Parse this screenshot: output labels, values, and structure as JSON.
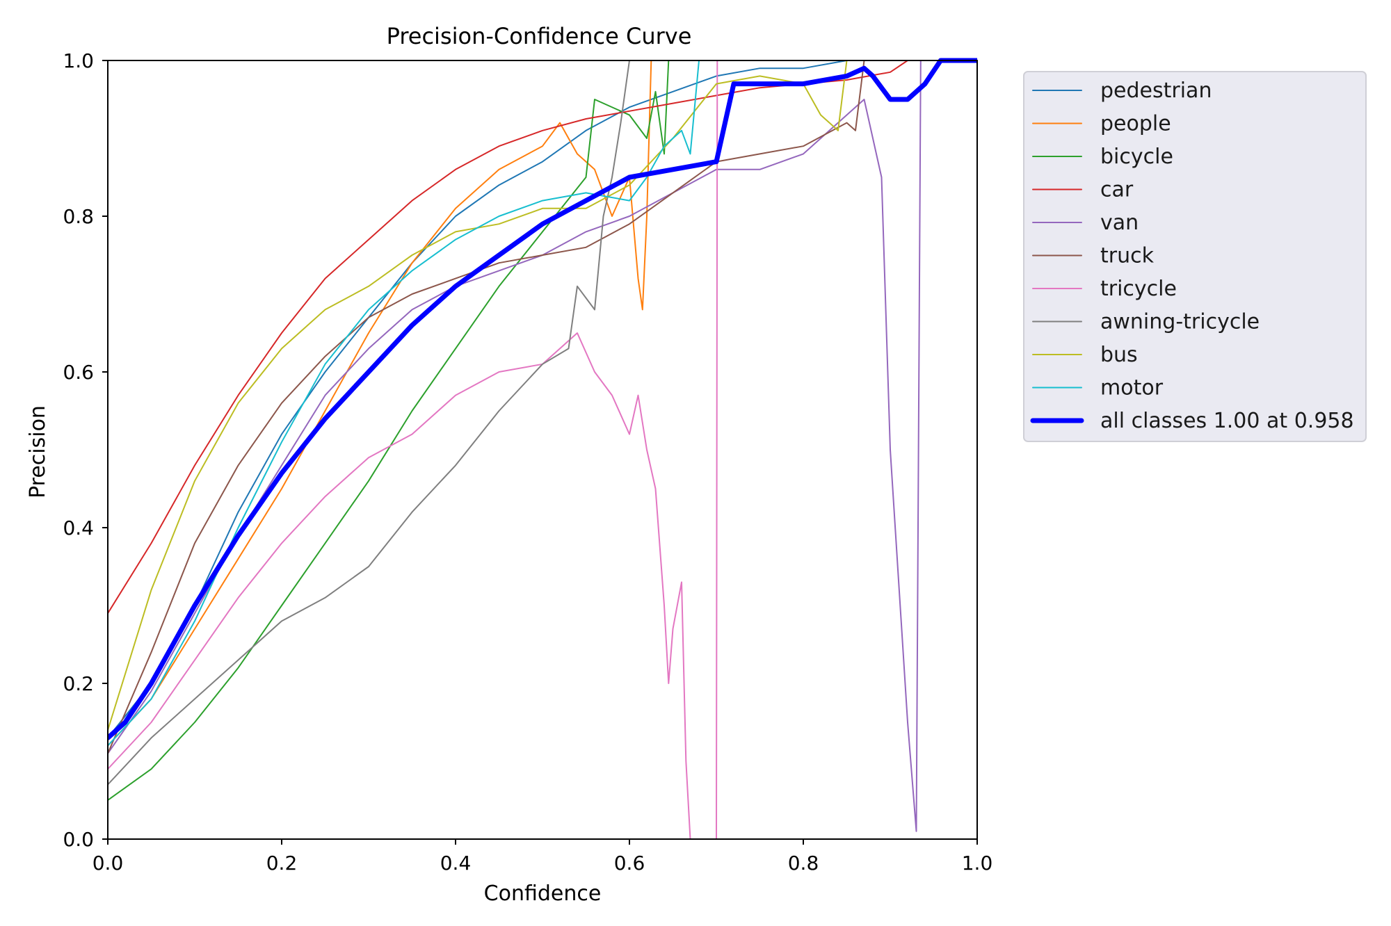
{
  "chart_data": {
    "type": "line",
    "title": "Precision-Confidence Curve",
    "xlabel": "Confidence",
    "ylabel": "Precision",
    "xlim": [
      0,
      1
    ],
    "ylim": [
      0,
      1
    ],
    "xticks": [
      "0.0",
      "0.2",
      "0.4",
      "0.6",
      "0.8",
      "1.0"
    ],
    "yticks": [
      "0.0",
      "0.2",
      "0.4",
      "0.6",
      "0.8",
      "1.0"
    ],
    "grid": false,
    "legend_position": "outside-right-top",
    "series": [
      {
        "name": "pedestrian",
        "color": "#1f77b4",
        "width": 2,
        "x": [
          0,
          0.05,
          0.1,
          0.15,
          0.2,
          0.25,
          0.3,
          0.35,
          0.4,
          0.45,
          0.5,
          0.55,
          0.6,
          0.65,
          0.7,
          0.75,
          0.8,
          0.85,
          0.9,
          0.95,
          1.0
        ],
        "y": [
          0.13,
          0.2,
          0.3,
          0.42,
          0.52,
          0.6,
          0.67,
          0.74,
          0.8,
          0.84,
          0.87,
          0.91,
          0.94,
          0.96,
          0.98,
          0.99,
          0.99,
          1.0,
          1.0,
          1.0,
          1.0
        ]
      },
      {
        "name": "people",
        "color": "#ff7f0e",
        "width": 2,
        "x": [
          0,
          0.05,
          0.1,
          0.15,
          0.2,
          0.25,
          0.3,
          0.35,
          0.4,
          0.45,
          0.5,
          0.52,
          0.54,
          0.56,
          0.58,
          0.6,
          0.61,
          0.615,
          0.62,
          0.625,
          1.0
        ],
        "y": [
          0.12,
          0.18,
          0.27,
          0.36,
          0.45,
          0.55,
          0.65,
          0.74,
          0.81,
          0.86,
          0.89,
          0.92,
          0.88,
          0.86,
          0.8,
          0.85,
          0.72,
          0.68,
          0.8,
          1.0,
          1.0
        ]
      },
      {
        "name": "bicycle",
        "color": "#2ca02c",
        "width": 2,
        "x": [
          0,
          0.05,
          0.1,
          0.15,
          0.2,
          0.25,
          0.3,
          0.35,
          0.4,
          0.45,
          0.5,
          0.55,
          0.56,
          0.6,
          0.62,
          0.63,
          0.64,
          0.645,
          1.0
        ],
        "y": [
          0.05,
          0.09,
          0.15,
          0.22,
          0.3,
          0.38,
          0.46,
          0.55,
          0.63,
          0.71,
          0.78,
          0.85,
          0.95,
          0.93,
          0.9,
          0.96,
          0.88,
          1.0,
          1.0
        ]
      },
      {
        "name": "car",
        "color": "#d62728",
        "width": 2,
        "x": [
          0,
          0.05,
          0.1,
          0.15,
          0.2,
          0.25,
          0.3,
          0.35,
          0.4,
          0.45,
          0.5,
          0.55,
          0.6,
          0.65,
          0.7,
          0.75,
          0.8,
          0.85,
          0.9,
          0.92,
          1.0
        ],
        "y": [
          0.29,
          0.38,
          0.48,
          0.57,
          0.65,
          0.72,
          0.77,
          0.82,
          0.86,
          0.89,
          0.91,
          0.925,
          0.935,
          0.945,
          0.955,
          0.965,
          0.97,
          0.975,
          0.985,
          1.0,
          1.0
        ]
      },
      {
        "name": "van",
        "color": "#9467bd",
        "width": 2,
        "x": [
          0,
          0.05,
          0.1,
          0.15,
          0.2,
          0.25,
          0.3,
          0.35,
          0.4,
          0.45,
          0.5,
          0.55,
          0.6,
          0.65,
          0.7,
          0.75,
          0.8,
          0.85,
          0.87,
          0.89,
          0.9,
          0.92,
          0.93,
          0.935,
          1.0
        ],
        "y": [
          0.11,
          0.19,
          0.29,
          0.39,
          0.48,
          0.57,
          0.63,
          0.68,
          0.71,
          0.73,
          0.75,
          0.78,
          0.8,
          0.83,
          0.86,
          0.86,
          0.88,
          0.93,
          0.95,
          0.85,
          0.5,
          0.15,
          0.01,
          1.0,
          1.0
        ]
      },
      {
        "name": "truck",
        "color": "#8c564b",
        "width": 2,
        "x": [
          0,
          0.05,
          0.1,
          0.15,
          0.2,
          0.25,
          0.3,
          0.35,
          0.4,
          0.45,
          0.5,
          0.55,
          0.6,
          0.65,
          0.7,
          0.75,
          0.8,
          0.85,
          0.86,
          0.87,
          1.0
        ],
        "y": [
          0.11,
          0.24,
          0.38,
          0.48,
          0.56,
          0.62,
          0.67,
          0.7,
          0.72,
          0.74,
          0.75,
          0.76,
          0.79,
          0.83,
          0.87,
          0.88,
          0.89,
          0.92,
          0.91,
          1.0,
          1.0
        ]
      },
      {
        "name": "tricycle",
        "color": "#e377c2",
        "width": 2,
        "x": [
          0,
          0.05,
          0.1,
          0.15,
          0.2,
          0.25,
          0.3,
          0.35,
          0.4,
          0.45,
          0.5,
          0.54,
          0.56,
          0.58,
          0.6,
          0.61,
          0.62,
          0.63,
          0.64,
          0.645,
          0.65,
          0.66,
          0.665,
          0.67,
          0.699,
          0.7,
          0.701,
          1.0
        ],
        "y": [
          0.09,
          0.15,
          0.23,
          0.31,
          0.38,
          0.44,
          0.49,
          0.52,
          0.57,
          0.6,
          0.61,
          0.65,
          0.6,
          0.57,
          0.52,
          0.57,
          0.5,
          0.45,
          0.3,
          0.2,
          0.27,
          0.33,
          0.1,
          0.0,
          0.0,
          0.0,
          1.0,
          1.0
        ]
      },
      {
        "name": "awning-tricycle",
        "color": "#7f7f7f",
        "width": 2,
        "x": [
          0,
          0.05,
          0.1,
          0.15,
          0.2,
          0.25,
          0.3,
          0.35,
          0.4,
          0.45,
          0.5,
          0.53,
          0.54,
          0.56,
          0.57,
          0.58,
          0.59,
          0.6,
          1.0
        ],
        "y": [
          0.07,
          0.13,
          0.18,
          0.23,
          0.28,
          0.31,
          0.35,
          0.42,
          0.48,
          0.55,
          0.61,
          0.63,
          0.71,
          0.68,
          0.8,
          0.85,
          0.92,
          1.0,
          1.0
        ]
      },
      {
        "name": "bus",
        "color": "#bcbd22",
        "width": 2,
        "x": [
          0,
          0.05,
          0.1,
          0.15,
          0.2,
          0.25,
          0.3,
          0.35,
          0.4,
          0.45,
          0.5,
          0.55,
          0.6,
          0.65,
          0.7,
          0.75,
          0.8,
          0.82,
          0.84,
          0.85,
          1.0
        ],
        "y": [
          0.14,
          0.32,
          0.46,
          0.56,
          0.63,
          0.68,
          0.71,
          0.75,
          0.78,
          0.79,
          0.81,
          0.81,
          0.84,
          0.9,
          0.97,
          0.98,
          0.97,
          0.93,
          0.91,
          1.0,
          1.0
        ]
      },
      {
        "name": "motor",
        "color": "#17becf",
        "width": 2,
        "x": [
          0,
          0.05,
          0.1,
          0.15,
          0.2,
          0.25,
          0.3,
          0.35,
          0.4,
          0.45,
          0.5,
          0.55,
          0.6,
          0.62,
          0.64,
          0.66,
          0.67,
          0.68,
          1.0
        ],
        "y": [
          0.12,
          0.18,
          0.28,
          0.4,
          0.51,
          0.61,
          0.68,
          0.73,
          0.77,
          0.8,
          0.82,
          0.83,
          0.82,
          0.85,
          0.89,
          0.91,
          0.88,
          1.0,
          1.0
        ]
      },
      {
        "name": "all classes 1.00 at 0.958",
        "color": "#0000ff",
        "width": 7,
        "x": [
          0,
          0.02,
          0.05,
          0.1,
          0.15,
          0.2,
          0.25,
          0.3,
          0.35,
          0.4,
          0.45,
          0.5,
          0.55,
          0.6,
          0.65,
          0.7,
          0.72,
          0.75,
          0.8,
          0.85,
          0.87,
          0.88,
          0.9,
          0.92,
          0.94,
          0.958,
          1.0
        ],
        "y": [
          0.13,
          0.15,
          0.2,
          0.3,
          0.39,
          0.47,
          0.54,
          0.6,
          0.66,
          0.71,
          0.75,
          0.79,
          0.82,
          0.85,
          0.86,
          0.87,
          0.97,
          0.97,
          0.97,
          0.98,
          0.99,
          0.98,
          0.95,
          0.95,
          0.97,
          1.0,
          1.0
        ]
      }
    ]
  }
}
